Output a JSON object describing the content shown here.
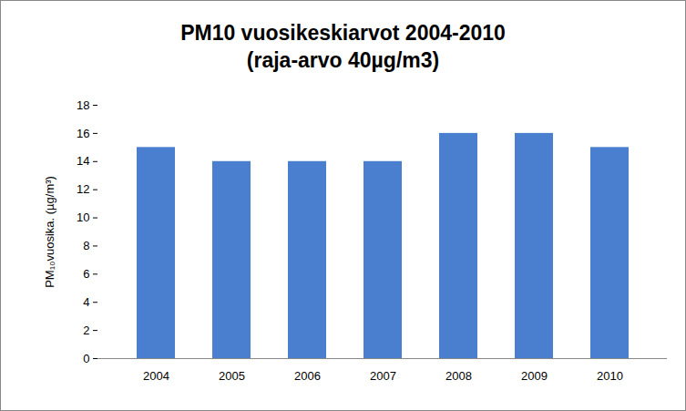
{
  "chart_data": {
    "type": "bar",
    "title": "PM10 vuosikeskiarvot 2004-2010",
    "subtitle": "(raja-arvo 40µg/m3)",
    "y_label": "PM₁₀vuosika. (µg/m³)",
    "categories": [
      "2004",
      "2005",
      "2006",
      "2007",
      "2008",
      "2009",
      "2010"
    ],
    "values": [
      15,
      14,
      14,
      14,
      16,
      16,
      15
    ],
    "color": "#4a7fd0",
    "ylim": [
      0,
      18
    ],
    "yticks": [
      0,
      2,
      4,
      6,
      8,
      10,
      12,
      14,
      16,
      18
    ],
    "grid": false
  }
}
